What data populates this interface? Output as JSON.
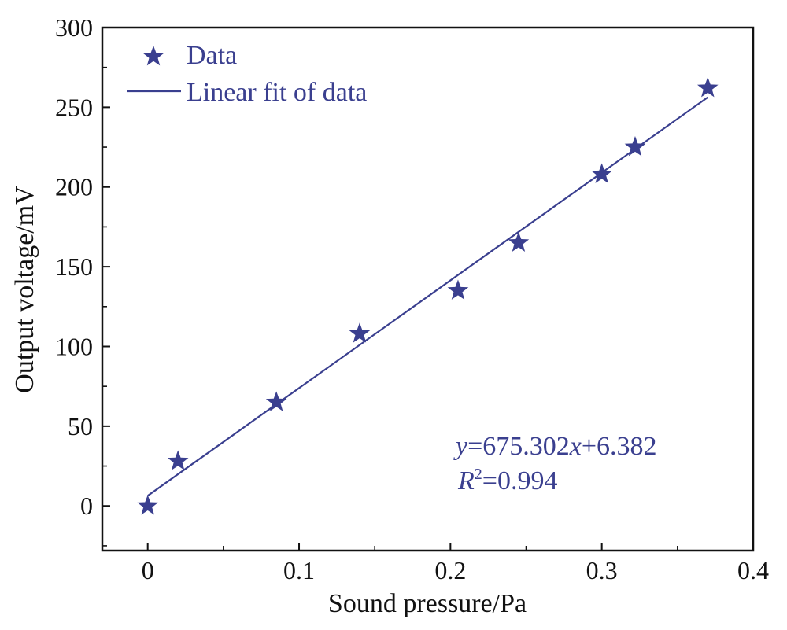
{
  "chart_data": {
    "type": "scatter",
    "title": "",
    "xlabel": "Sound pressure/Pa",
    "ylabel": "Output voltage/mV",
    "xlim": [
      -0.03,
      0.4
    ],
    "ylim": [
      -28,
      300
    ],
    "xticks": [
      0,
      0.1,
      0.2,
      0.3,
      0.4
    ],
    "xtick_labels": [
      "0",
      "0.1",
      "0.2",
      "0.3",
      "0.4"
    ],
    "xminor": [
      0.05,
      0.15,
      0.25,
      0.35
    ],
    "yticks": [
      0,
      50,
      100,
      150,
      200,
      250,
      300
    ],
    "ytick_labels": [
      "0",
      "50",
      "100",
      "150",
      "200",
      "250",
      "300"
    ],
    "yminor": [
      -25,
      25,
      75,
      125,
      175,
      225,
      275
    ],
    "grid": false,
    "legend_position": "top-left",
    "series": [
      {
        "name": "Data",
        "kind": "scatter",
        "marker": "star",
        "x": [
          0,
          0.02,
          0.085,
          0.14,
          0.205,
          0.245,
          0.3,
          0.322,
          0.37
        ],
        "y": [
          0,
          28,
          65,
          108,
          135,
          165,
          208,
          225,
          262
        ]
      },
      {
        "name": "Linear fit of data",
        "kind": "line",
        "slope": 675.302,
        "intercept": 6.382,
        "x_range": [
          0,
          0.37
        ]
      }
    ],
    "annotations": {
      "equation": {
        "y_var": "y",
        "eq1": "=675.302",
        "x_var": "x",
        "eq2": "+6.382"
      },
      "r_squared": {
        "r_var": "R",
        "sup": "2",
        "value": "=0.994"
      }
    }
  },
  "colors": {
    "series": "#3a3f8f",
    "axis": "#111111",
    "background": "#ffffff"
  }
}
